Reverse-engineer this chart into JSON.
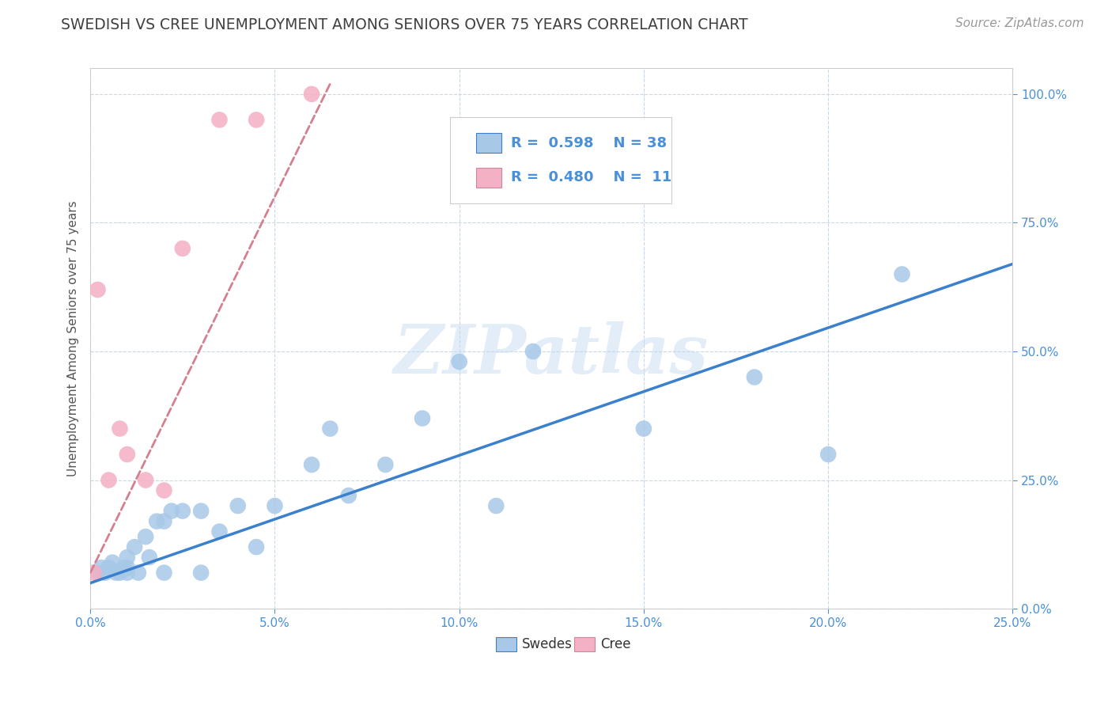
{
  "title": "SWEDISH VS CREE UNEMPLOYMENT AMONG SENIORS OVER 75 YEARS CORRELATION CHART",
  "source": "Source: ZipAtlas.com",
  "ylabel": "Unemployment Among Seniors over 75 years",
  "xlim": [
    0.0,
    0.25
  ],
  "ylim": [
    0.0,
    1.05
  ],
  "xticks": [
    0.0,
    0.05,
    0.1,
    0.15,
    0.2,
    0.25
  ],
  "yticks": [
    0.0,
    0.25,
    0.5,
    0.75,
    1.0
  ],
  "xticklabels": [
    "0.0%",
    "5.0%",
    "10.0%",
    "15.0%",
    "20.0%",
    "25.0%"
  ],
  "yticklabels": [
    "0.0%",
    "25.0%",
    "50.0%",
    "75.0%",
    "100.0%"
  ],
  "swedish_R": "0.598",
  "swedish_N": "38",
  "cree_R": "0.480",
  "cree_N": "11",
  "swedish_dot_color": "#a8c8e8",
  "cree_dot_color": "#f4b0c4",
  "swedish_line_color": "#3a80cc",
  "cree_line_color": "#d48090",
  "watermark": "ZIPatlas",
  "swedish_scatter_x": [
    0.002,
    0.003,
    0.004,
    0.005,
    0.006,
    0.007,
    0.008,
    0.009,
    0.01,
    0.01,
    0.01,
    0.012,
    0.013,
    0.015,
    0.016,
    0.018,
    0.02,
    0.02,
    0.022,
    0.025,
    0.03,
    0.03,
    0.035,
    0.04,
    0.045,
    0.05,
    0.06,
    0.065,
    0.07,
    0.08,
    0.09,
    0.1,
    0.11,
    0.12,
    0.15,
    0.18,
    0.2,
    0.22
  ],
  "swedish_scatter_y": [
    0.07,
    0.08,
    0.07,
    0.08,
    0.09,
    0.07,
    0.07,
    0.08,
    0.07,
    0.08,
    0.1,
    0.12,
    0.07,
    0.14,
    0.1,
    0.17,
    0.07,
    0.17,
    0.19,
    0.19,
    0.07,
    0.19,
    0.15,
    0.2,
    0.12,
    0.2,
    0.28,
    0.35,
    0.22,
    0.28,
    0.37,
    0.48,
    0.2,
    0.5,
    0.35,
    0.45,
    0.3,
    0.65
  ],
  "cree_scatter_x": [
    0.001,
    0.002,
    0.005,
    0.008,
    0.01,
    0.015,
    0.02,
    0.025,
    0.035,
    0.045,
    0.06
  ],
  "cree_scatter_y": [
    0.07,
    0.62,
    0.25,
    0.35,
    0.3,
    0.25,
    0.23,
    0.7,
    0.95,
    0.95,
    1.0
  ],
  "swedish_line_x": [
    0.0,
    0.25
  ],
  "swedish_line_y": [
    0.05,
    0.67
  ],
  "cree_line_x": [
    0.0,
    0.065
  ],
  "cree_line_y": [
    0.07,
    1.02
  ],
  "background_color": "#ffffff",
  "grid_color": "#c8d8e8",
  "title_color": "#404040",
  "axis_label_color": "#555555",
  "tick_color": "#4a90d9"
}
